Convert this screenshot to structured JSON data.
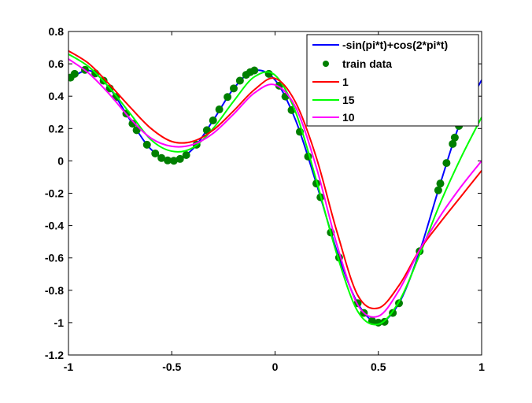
{
  "chart_data": {
    "type": "line",
    "title": "",
    "xlabel": "",
    "ylabel": "",
    "xlim": [
      -1,
      1
    ],
    "ylim": [
      -1.2,
      0.8
    ],
    "xticks": [
      -1,
      -0.5,
      0,
      0.5,
      1
    ],
    "xtick_labels": [
      "-1",
      "-0.5",
      "0",
      "0.5",
      "1"
    ],
    "yticks": [
      0.8,
      0.6,
      0.4,
      0.2,
      0,
      -0.2,
      -0.4,
      -0.6,
      -0.8,
      -1,
      -1.2
    ],
    "ytick_labels": [
      "0.8",
      "0.6",
      "0.4",
      "0.2",
      "0",
      "-0.2",
      "-0.4",
      "-0.6",
      "-0.8",
      "-1",
      "-1.2"
    ],
    "grid": false,
    "legend_position": "top-right",
    "x": [
      -1,
      -0.9,
      -0.8,
      -0.7,
      -0.6,
      -0.5,
      -0.4,
      -0.3,
      -0.2,
      -0.1,
      0,
      0.1,
      0.2,
      0.3,
      0.4,
      0.5,
      0.6,
      0.7,
      0.8,
      0.9,
      1
    ],
    "series": [
      {
        "name": "-sin(pi*t)+cos(2*pi*t)",
        "color": "#0000ff",
        "style": "line",
        "values": [
          0.5,
          0.559,
          0.448,
          0.25,
          0.071,
          0,
          0.071,
          0.25,
          0.448,
          0.559,
          0.5,
          0.25,
          -0.14,
          -0.559,
          -0.88,
          -1,
          -0.88,
          -0.559,
          -0.14,
          0.25,
          0.5
        ]
      },
      {
        "name": "1",
        "color": "#ff0000",
        "style": "line",
        "values": [
          0.68,
          0.6,
          0.47,
          0.33,
          0.2,
          0.12,
          0.12,
          0.19,
          0.31,
          0.44,
          0.51,
          0.36,
          0.02,
          -0.44,
          -0.83,
          -0.91,
          -0.77,
          -0.55,
          -0.38,
          -0.22,
          -0.06
        ]
      },
      {
        "name": "15",
        "color": "#00ff00",
        "style": "line",
        "values": [
          0.66,
          0.58,
          0.45,
          0.29,
          0.13,
          0.06,
          0.08,
          0.2,
          0.37,
          0.52,
          0.53,
          0.3,
          -0.12,
          -0.58,
          -0.93,
          -1.01,
          -0.87,
          -0.58,
          -0.26,
          0.02,
          0.27
        ]
      },
      {
        "name": "10",
        "color": "#ff00ff",
        "style": "line",
        "values": [
          0.63,
          0.54,
          0.41,
          0.26,
          0.14,
          0.09,
          0.1,
          0.17,
          0.29,
          0.42,
          0.47,
          0.33,
          -0.04,
          -0.52,
          -0.89,
          -0.96,
          -0.8,
          -0.55,
          -0.34,
          -0.16,
          0.0
        ]
      }
    ],
    "scatter": {
      "name": "train data",
      "color": "#007f00",
      "x": [
        -0.99,
        -0.97,
        -0.92,
        -0.87,
        -0.83,
        -0.8,
        -0.77,
        -0.72,
        -0.69,
        -0.67,
        -0.62,
        -0.58,
        -0.55,
        -0.52,
        -0.49,
        -0.46,
        -0.43,
        -0.38,
        -0.33,
        -0.3,
        -0.27,
        -0.23,
        -0.2,
        -0.17,
        -0.14,
        -0.12,
        -0.1,
        -0.03,
        0.02,
        0.05,
        0.08,
        0.12,
        0.16,
        0.2,
        0.22,
        0.27,
        0.31,
        0.4,
        0.43,
        0.47,
        0.5,
        0.53,
        0.57,
        0.6,
        0.7,
        0.79,
        0.8,
        0.83,
        0.86,
        0.87,
        0.89
      ],
      "y": [
        0.515,
        0.538,
        0.563,
        0.541,
        0.496,
        0.448,
        0.395,
        0.292,
        0.23,
        0.19,
        0.1,
        0.046,
        0.018,
        0.003,
        0.001,
        0.012,
        0.036,
        0.1,
        0.19,
        0.25,
        0.318,
        0.395,
        0.448,
        0.496,
        0.532,
        0.549,
        0.559,
        0.538,
        0.465,
        0.398,
        0.314,
        0.18,
        0.027,
        -0.14,
        -0.225,
        -0.443,
        -0.598,
        -0.88,
        -0.94,
        -0.989,
        -1,
        -0.995,
        -0.94,
        -0.88,
        -0.559,
        -0.182,
        -0.14,
        -0.013,
        0.105,
        0.144,
        0.216
      ]
    },
    "legend": [
      "-sin(pi*t)+cos(2*pi*t)",
      "train data",
      "1",
      "15",
      "10"
    ]
  }
}
